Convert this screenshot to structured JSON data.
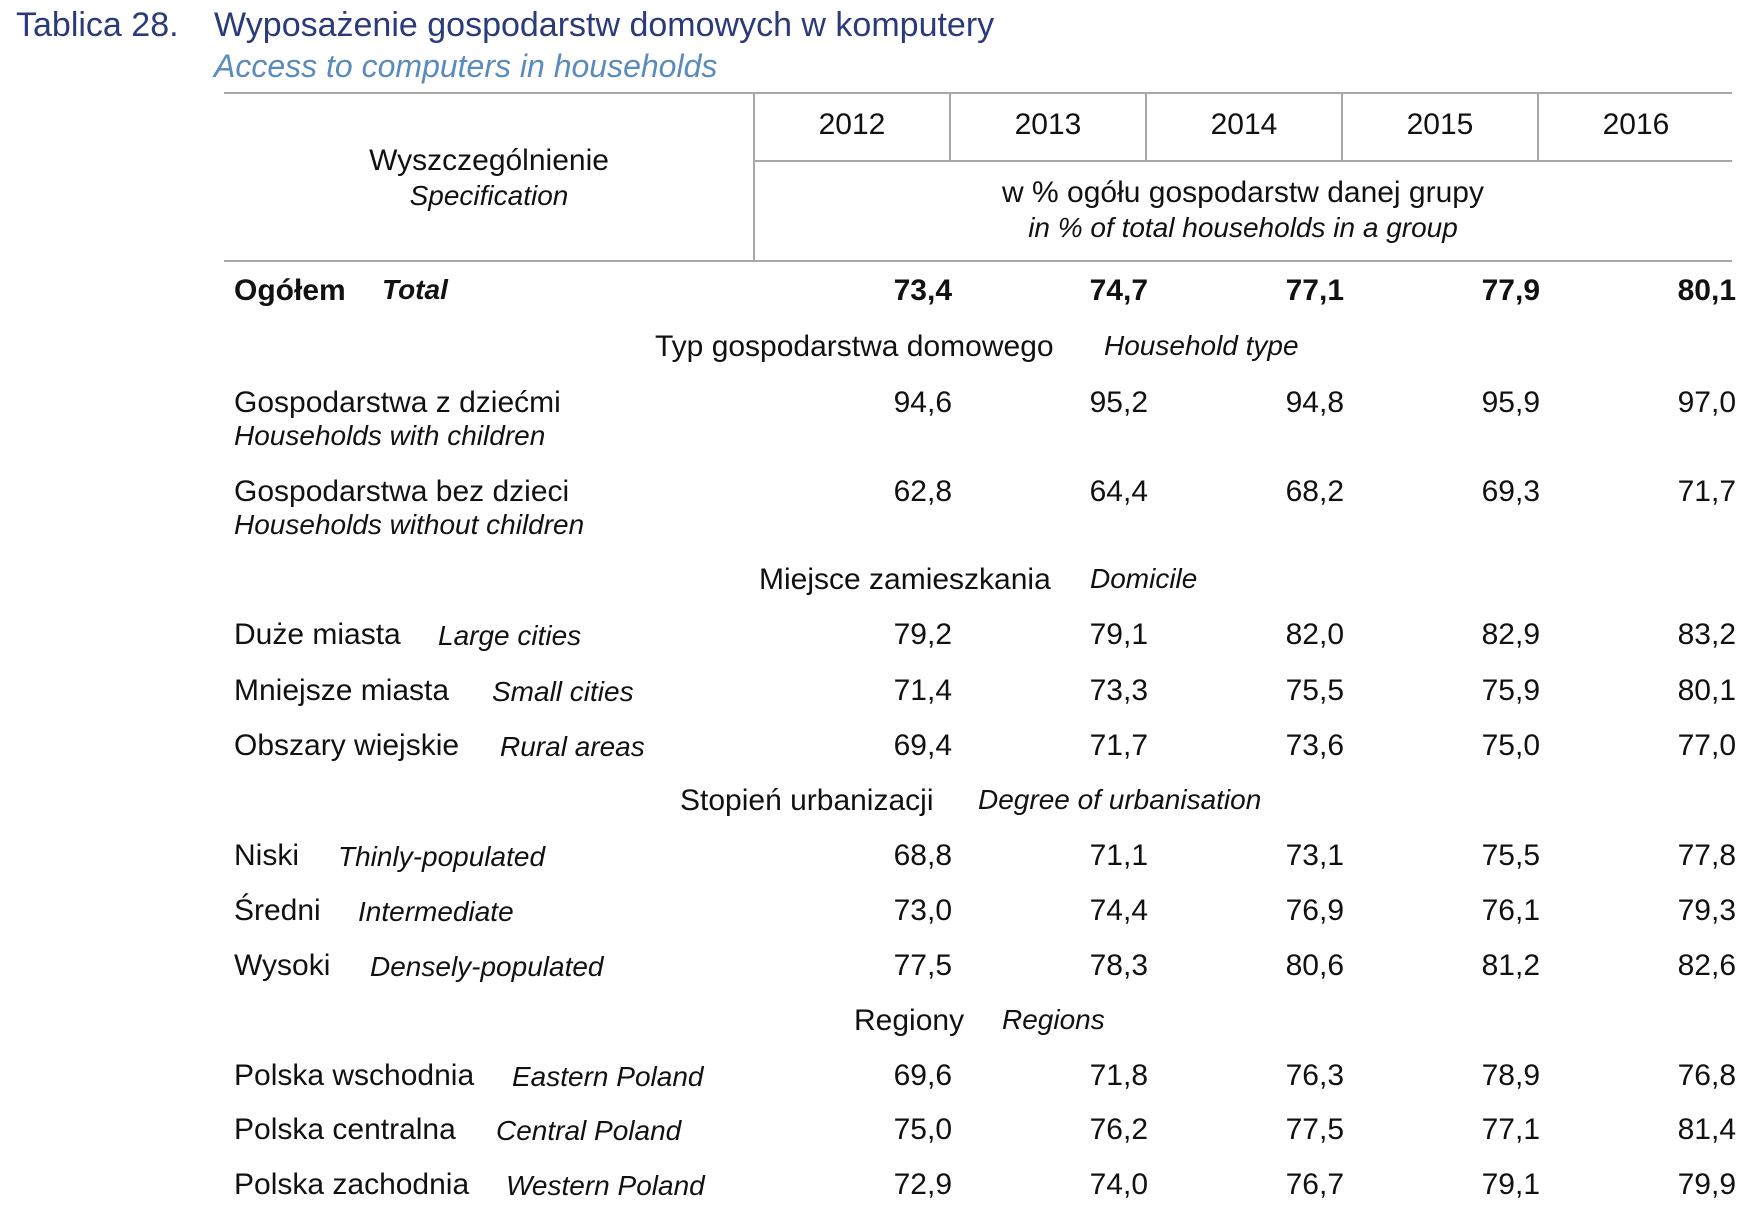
{
  "caption": {
    "number": "Tablica 28.",
    "title_pl": "Wyposażenie gospodarstw domowych w komputery",
    "title_en": "Access to computers in households"
  },
  "header": {
    "spec_pl": "Wyszczególnienie",
    "spec_en": "Specification",
    "years": [
      "2012",
      "2013",
      "2014",
      "2015",
      "2016"
    ],
    "unit_pl": "w % ogółu gospodarstw danej grupy",
    "unit_en": "in % of total households in a group"
  },
  "total": {
    "label_pl": "Ogółem",
    "label_en": "Total",
    "values": [
      "73,4",
      "74,7",
      "77,1",
      "77,9",
      "80,1"
    ]
  },
  "sections": {
    "household_type": {
      "pl": "Typ gospodarstwa domowego",
      "en": "Household type"
    },
    "domicile": {
      "pl": "Miejsce zamieszkania",
      "en": "Domicile"
    },
    "urbanisation": {
      "pl": "Stopień urbanizacji",
      "en": "Degree of urbanisation"
    },
    "regions": {
      "pl": "Regiony",
      "en": "Regions"
    }
  },
  "rows": {
    "with_children": {
      "pl": "Gospodarstwa z dziećmi",
      "en": "Households with children",
      "values": [
        "94,6",
        "95,2",
        "94,8",
        "95,9",
        "97,0"
      ]
    },
    "without_children": {
      "pl": "Gospodarstwa bez dzieci",
      "en": "Households without children",
      "values": [
        "62,8",
        "64,4",
        "68,2",
        "69,3",
        "71,7"
      ]
    },
    "large_cities": {
      "pl": "Duże miasta",
      "en": "Large cities",
      "values": [
        "79,2",
        "79,1",
        "82,0",
        "82,9",
        "83,2"
      ]
    },
    "small_cities": {
      "pl": "Mniejsze miasta",
      "en": "Small cities",
      "values": [
        "71,4",
        "73,3",
        "75,5",
        "75,9",
        "80,1"
      ]
    },
    "rural": {
      "pl": "Obszary wiejskie",
      "en": "Rural areas",
      "values": [
        "69,4",
        "71,7",
        "73,6",
        "75,0",
        "77,0"
      ]
    },
    "thin": {
      "pl": "Niski",
      "en": "Thinly-populated",
      "values": [
        "68,8",
        "71,1",
        "73,1",
        "75,5",
        "77,8"
      ]
    },
    "intermediate": {
      "pl": "Średni",
      "en": "Intermediate",
      "values": [
        "73,0",
        "74,4",
        "76,9",
        "76,1",
        "79,3"
      ]
    },
    "dense": {
      "pl": "Wysoki",
      "en": "Densely-populated",
      "values": [
        "77,5",
        "78,3",
        "80,6",
        "81,2",
        "82,6"
      ]
    },
    "east": {
      "pl": "Polska wschodnia",
      "en": "Eastern Poland",
      "values": [
        "69,6",
        "71,8",
        "76,3",
        "78,9",
        "76,8"
      ]
    },
    "central": {
      "pl": "Polska centralna",
      "en": "Central Poland",
      "values": [
        "75,0",
        "76,2",
        "77,5",
        "77,1",
        "81,4"
      ]
    },
    "west": {
      "pl": "Polska zachodnia",
      "en": "Western Poland",
      "values": [
        "72,9",
        "74,0",
        "76,7",
        "79,1",
        "79,9"
      ]
    }
  }
}
